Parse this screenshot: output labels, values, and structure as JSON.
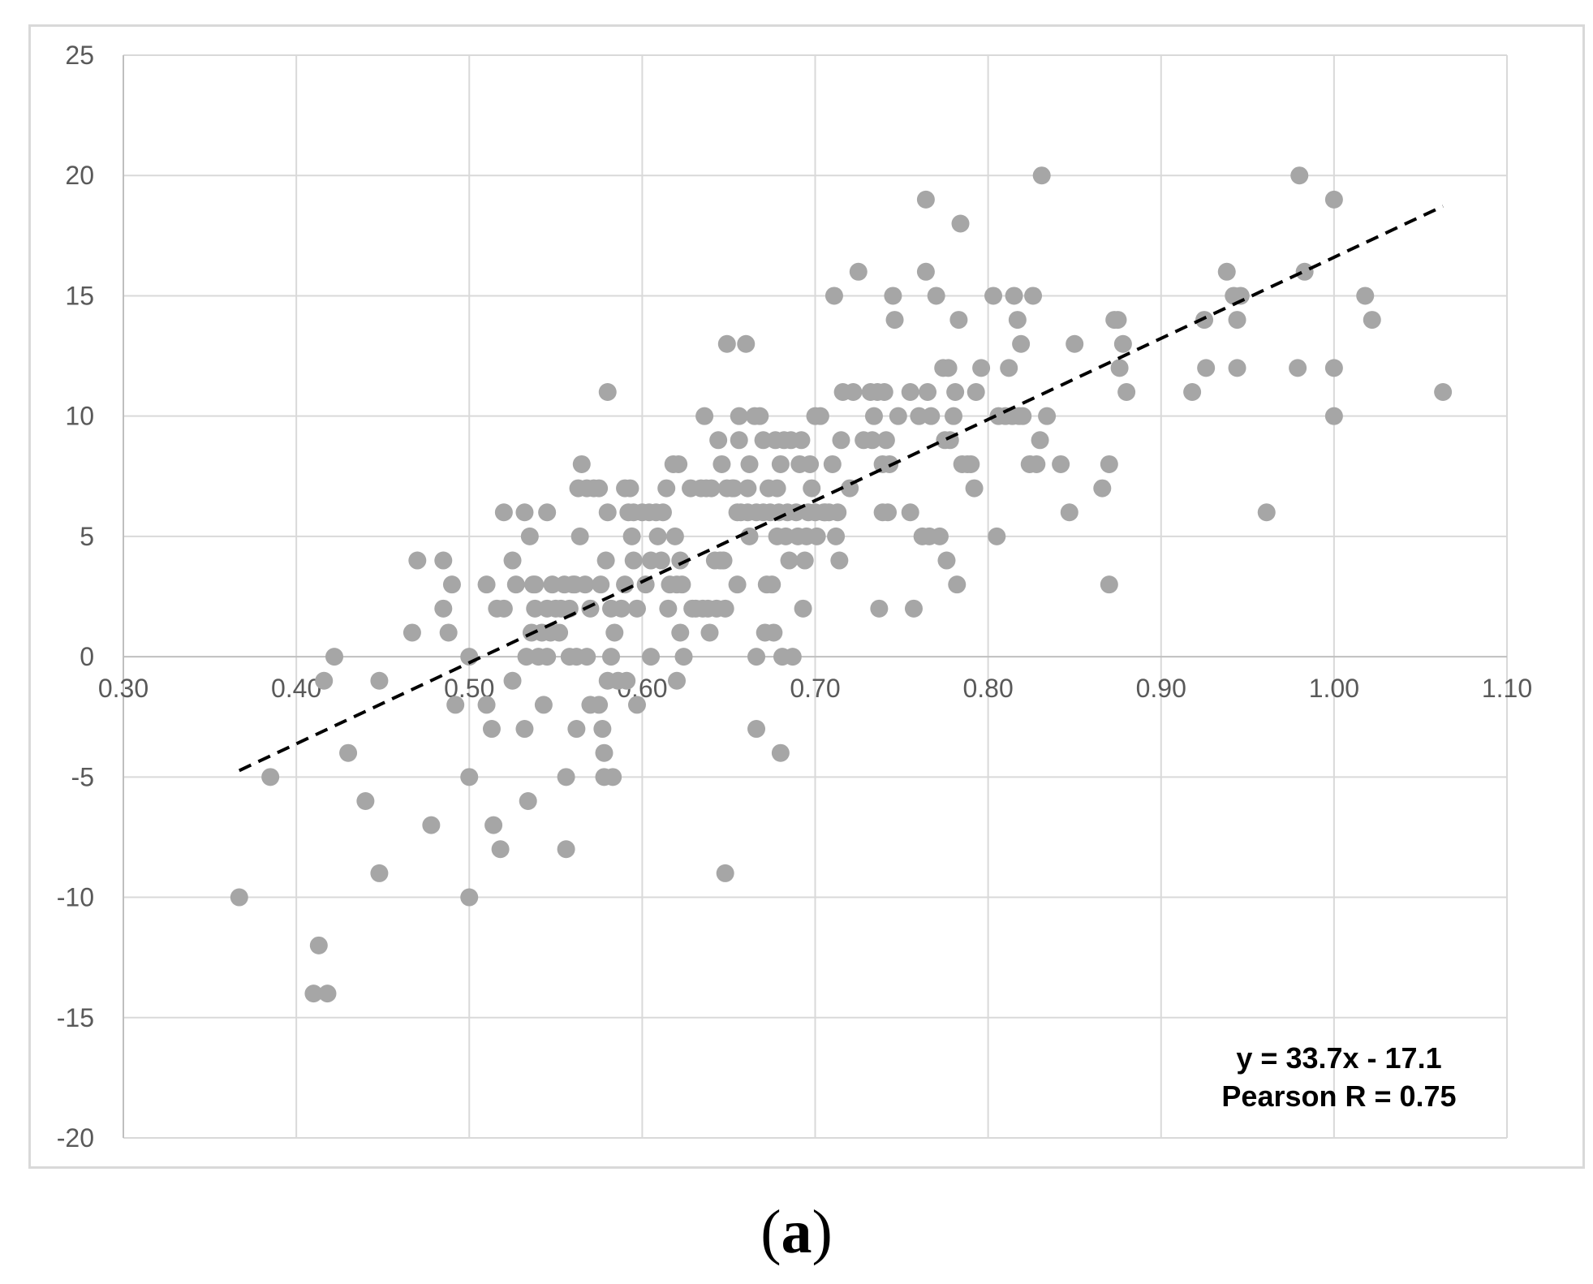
{
  "chart_data": {
    "type": "scatter",
    "title": "",
    "xlabel": "",
    "ylabel": "",
    "xlim": [
      0.3,
      1.1
    ],
    "ylim": [
      -20,
      25
    ],
    "x_ticks": [
      "0.30",
      "0.40",
      "0.50",
      "0.60",
      "0.70",
      "0.80",
      "0.90",
      "1.00",
      "1.10"
    ],
    "y_ticks": [
      "25",
      "20",
      "15",
      "10",
      "5",
      "0",
      "-5",
      "-10",
      "-15",
      "-20"
    ],
    "grid": true,
    "point_color": "#a6a6a6",
    "trendline": {
      "slope": 33.7,
      "intercept": -17.1,
      "x_start": 0.367,
      "x_end": 1.063,
      "style": "dashed",
      "color": "#000000"
    },
    "annotation": {
      "equation": "y = 33.7x - 17.1",
      "pearson": "Pearson R = 0.75",
      "placement": "bottom-right"
    },
    "points": [
      [
        0.367,
        -10
      ],
      [
        0.385,
        -5
      ],
      [
        0.41,
        -14
      ],
      [
        0.413,
        -12
      ],
      [
        0.416,
        -1
      ],
      [
        0.418,
        -14
      ],
      [
        0.422,
        0
      ],
      [
        0.43,
        -4
      ],
      [
        0.44,
        -6
      ],
      [
        0.448,
        -9
      ],
      [
        0.448,
        -1
      ],
      [
        0.467,
        1
      ],
      [
        0.47,
        4
      ],
      [
        0.478,
        -7
      ],
      [
        0.485,
        2
      ],
      [
        0.485,
        4
      ],
      [
        0.488,
        1
      ],
      [
        0.49,
        3
      ],
      [
        0.492,
        -2
      ],
      [
        0.5,
        -5
      ],
      [
        0.5,
        -10
      ],
      [
        0.5,
        0
      ],
      [
        0.51,
        3
      ],
      [
        0.51,
        -2
      ],
      [
        0.513,
        -3
      ],
      [
        0.514,
        -7
      ],
      [
        0.516,
        2
      ],
      [
        0.518,
        -8
      ],
      [
        0.52,
        6
      ],
      [
        0.52,
        2
      ],
      [
        0.525,
        -1
      ],
      [
        0.525,
        4
      ],
      [
        0.527,
        3
      ],
      [
        0.532,
        -3
      ],
      [
        0.532,
        6
      ],
      [
        0.533,
        0
      ],
      [
        0.534,
        -6
      ],
      [
        0.535,
        5
      ],
      [
        0.536,
        1
      ],
      [
        0.537,
        3
      ],
      [
        0.538,
        2
      ],
      [
        0.538,
        3
      ],
      [
        0.54,
        0
      ],
      [
        0.542,
        1
      ],
      [
        0.543,
        -2
      ],
      [
        0.545,
        6
      ],
      [
        0.545,
        2
      ],
      [
        0.545,
        0
      ],
      [
        0.547,
        1
      ],
      [
        0.548,
        3
      ],
      [
        0.55,
        2
      ],
      [
        0.552,
        1
      ],
      [
        0.553,
        2
      ],
      [
        0.555,
        3
      ],
      [
        0.556,
        -5
      ],
      [
        0.556,
        -8
      ],
      [
        0.558,
        2
      ],
      [
        0.558,
        0
      ],
      [
        0.56,
        3
      ],
      [
        0.561,
        3
      ],
      [
        0.562,
        -3
      ],
      [
        0.562,
        0
      ],
      [
        0.563,
        7
      ],
      [
        0.564,
        5
      ],
      [
        0.565,
        8
      ],
      [
        0.567,
        3
      ],
      [
        0.568,
        0
      ],
      [
        0.568,
        7
      ],
      [
        0.57,
        -2
      ],
      [
        0.57,
        2
      ],
      [
        0.572,
        7
      ],
      [
        0.575,
        -2
      ],
      [
        0.575,
        7
      ],
      [
        0.576,
        3
      ],
      [
        0.577,
        -3
      ],
      [
        0.578,
        -5
      ],
      [
        0.578,
        -4
      ],
      [
        0.579,
        4
      ],
      [
        0.58,
        6
      ],
      [
        0.58,
        -1
      ],
      [
        0.58,
        11
      ],
      [
        0.582,
        2
      ],
      [
        0.582,
        0
      ],
      [
        0.583,
        -5
      ],
      [
        0.584,
        1
      ],
      [
        0.586,
        -1
      ],
      [
        0.588,
        2
      ],
      [
        0.59,
        3
      ],
      [
        0.59,
        7
      ],
      [
        0.591,
        -1
      ],
      [
        0.592,
        6
      ],
      [
        0.593,
        7
      ],
      [
        0.594,
        5
      ],
      [
        0.595,
        4
      ],
      [
        0.595,
        6
      ],
      [
        0.597,
        -2
      ],
      [
        0.597,
        2
      ],
      [
        0.6,
        6
      ],
      [
        0.602,
        3
      ],
      [
        0.604,
        6
      ],
      [
        0.605,
        0
      ],
      [
        0.605,
        4
      ],
      [
        0.608,
        6
      ],
      [
        0.609,
        5
      ],
      [
        0.611,
        4
      ],
      [
        0.612,
        6
      ],
      [
        0.614,
        7
      ],
      [
        0.615,
        2
      ],
      [
        0.616,
        3
      ],
      [
        0.618,
        8
      ],
      [
        0.619,
        5
      ],
      [
        0.62,
        3
      ],
      [
        0.62,
        -1
      ],
      [
        0.621,
        8
      ],
      [
        0.622,
        1
      ],
      [
        0.622,
        4
      ],
      [
        0.623,
        3
      ],
      [
        0.624,
        0
      ],
      [
        0.628,
        7
      ],
      [
        0.629,
        2
      ],
      [
        0.631,
        2
      ],
      [
        0.634,
        7
      ],
      [
        0.635,
        2
      ],
      [
        0.636,
        10
      ],
      [
        0.637,
        7
      ],
      [
        0.638,
        2
      ],
      [
        0.639,
        1
      ],
      [
        0.64,
        7
      ],
      [
        0.642,
        4
      ],
      [
        0.643,
        2
      ],
      [
        0.644,
        9
      ],
      [
        0.645,
        4
      ],
      [
        0.646,
        8
      ],
      [
        0.647,
        4
      ],
      [
        0.648,
        -9
      ],
      [
        0.648,
        2
      ],
      [
        0.649,
        7
      ],
      [
        0.649,
        13
      ],
      [
        0.652,
        7
      ],
      [
        0.653,
        7
      ],
      [
        0.655,
        3
      ],
      [
        0.655,
        6
      ],
      [
        0.656,
        9
      ],
      [
        0.656,
        10
      ],
      [
        0.657,
        6
      ],
      [
        0.66,
        13
      ],
      [
        0.661,
        6
      ],
      [
        0.661,
        7
      ],
      [
        0.662,
        5
      ],
      [
        0.662,
        8
      ],
      [
        0.665,
        10
      ],
      [
        0.666,
        6
      ],
      [
        0.666,
        -3
      ],
      [
        0.666,
        0
      ],
      [
        0.668,
        10
      ],
      [
        0.67,
        9
      ],
      [
        0.67,
        6
      ],
      [
        0.671,
        1
      ],
      [
        0.672,
        3
      ],
      [
        0.673,
        7
      ],
      [
        0.674,
        6
      ],
      [
        0.675,
        3
      ],
      [
        0.676,
        1
      ],
      [
        0.677,
        9
      ],
      [
        0.678,
        7
      ],
      [
        0.678,
        5
      ],
      [
        0.679,
        6
      ],
      [
        0.68,
        -4
      ],
      [
        0.68,
        8
      ],
      [
        0.681,
        0
      ],
      [
        0.682,
        9
      ],
      [
        0.683,
        5
      ],
      [
        0.684,
        6
      ],
      [
        0.685,
        4
      ],
      [
        0.686,
        9
      ],
      [
        0.687,
        0
      ],
      [
        0.689,
        6
      ],
      [
        0.69,
        5
      ],
      [
        0.691,
        8
      ],
      [
        0.692,
        9
      ],
      [
        0.693,
        2
      ],
      [
        0.694,
        4
      ],
      [
        0.695,
        5
      ],
      [
        0.696,
        6
      ],
      [
        0.697,
        8
      ],
      [
        0.698,
        7
      ],
      [
        0.7,
        6
      ],
      [
        0.7,
        10
      ],
      [
        0.701,
        5
      ],
      [
        0.703,
        10
      ],
      [
        0.705,
        6
      ],
      [
        0.706,
        6
      ],
      [
        0.708,
        6
      ],
      [
        0.71,
        8
      ],
      [
        0.711,
        15
      ],
      [
        0.712,
        5
      ],
      [
        0.713,
        6
      ],
      [
        0.714,
        4
      ],
      [
        0.715,
        9
      ],
      [
        0.716,
        11
      ],
      [
        0.72,
        7
      ],
      [
        0.722,
        11
      ],
      [
        0.725,
        16
      ],
      [
        0.728,
        9
      ],
      [
        0.732,
        11
      ],
      [
        0.733,
        9
      ],
      [
        0.734,
        10
      ],
      [
        0.736,
        11
      ],
      [
        0.737,
        2
      ],
      [
        0.739,
        8
      ],
      [
        0.739,
        6
      ],
      [
        0.74,
        11
      ],
      [
        0.741,
        9
      ],
      [
        0.742,
        6
      ],
      [
        0.743,
        8
      ],
      [
        0.745,
        15
      ],
      [
        0.746,
        14
      ],
      [
        0.748,
        10
      ],
      [
        0.755,
        11
      ],
      [
        0.755,
        6
      ],
      [
        0.757,
        2
      ],
      [
        0.76,
        10
      ],
      [
        0.762,
        5
      ],
      [
        0.764,
        16
      ],
      [
        0.764,
        19
      ],
      [
        0.765,
        11
      ],
      [
        0.766,
        5
      ],
      [
        0.767,
        10
      ],
      [
        0.77,
        15
      ],
      [
        0.772,
        5
      ],
      [
        0.774,
        12
      ],
      [
        0.775,
        9
      ],
      [
        0.776,
        4
      ],
      [
        0.777,
        12
      ],
      [
        0.778,
        9
      ],
      [
        0.78,
        10
      ],
      [
        0.781,
        11
      ],
      [
        0.782,
        3
      ],
      [
        0.783,
        14
      ],
      [
        0.784,
        18
      ],
      [
        0.785,
        8
      ],
      [
        0.788,
        8
      ],
      [
        0.79,
        8
      ],
      [
        0.792,
        7
      ],
      [
        0.793,
        11
      ],
      [
        0.796,
        12
      ],
      [
        0.803,
        15
      ],
      [
        0.805,
        5
      ],
      [
        0.806,
        10
      ],
      [
        0.81,
        10
      ],
      [
        0.812,
        12
      ],
      [
        0.814,
        10
      ],
      [
        0.815,
        15
      ],
      [
        0.817,
        14
      ],
      [
        0.818,
        10
      ],
      [
        0.819,
        13
      ],
      [
        0.82,
        10
      ],
      [
        0.824,
        8
      ],
      [
        0.826,
        15
      ],
      [
        0.828,
        8
      ],
      [
        0.83,
        9
      ],
      [
        0.831,
        20
      ],
      [
        0.834,
        10
      ],
      [
        0.842,
        8
      ],
      [
        0.847,
        6
      ],
      [
        0.85,
        13
      ],
      [
        0.866,
        7
      ],
      [
        0.87,
        3
      ],
      [
        0.87,
        8
      ],
      [
        0.873,
        14
      ],
      [
        0.875,
        14
      ],
      [
        0.876,
        12
      ],
      [
        0.878,
        13
      ],
      [
        0.88,
        11
      ],
      [
        0.918,
        11
      ],
      [
        0.925,
        14
      ],
      [
        0.926,
        12
      ],
      [
        0.938,
        16
      ],
      [
        0.942,
        15
      ],
      [
        0.944,
        14
      ],
      [
        0.944,
        12
      ],
      [
        0.946,
        15
      ],
      [
        0.961,
        6
      ],
      [
        0.979,
        12
      ],
      [
        0.98,
        20
      ],
      [
        0.983,
        16
      ],
      [
        1.0,
        19
      ],
      [
        1.0,
        12
      ],
      [
        1.0,
        10
      ],
      [
        1.018,
        15
      ],
      [
        1.022,
        14
      ],
      [
        1.063,
        11
      ]
    ]
  },
  "caption": {
    "open": "(",
    "label": "a",
    "close": ")"
  }
}
